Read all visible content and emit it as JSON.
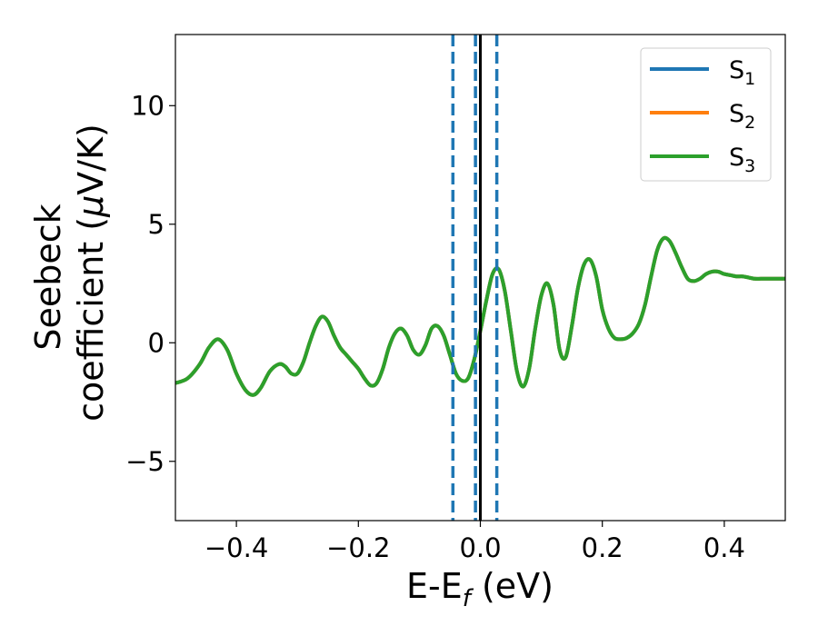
{
  "chart_data": {
    "type": "line",
    "xlabel": "E-E$_f$ (eV)",
    "xlabel_parts": {
      "main": "E-E",
      "sub": "f",
      "tail": " (eV)"
    },
    "ylabel_line1": "Seebeck",
    "ylabel_line2_main": "coefficient  (",
    "ylabel_line2_mu": "μ",
    "ylabel_line2_tail": "V/K)",
    "xlim": [
      -0.5,
      0.5
    ],
    "ylim": [
      -7.5,
      13
    ],
    "xticks": [
      -0.4,
      -0.2,
      0.0,
      0.2,
      0.4
    ],
    "xtick_labels": [
      "−0.4",
      "−0.2",
      "0.0",
      "0.2",
      "0.4"
    ],
    "yticks": [
      -5,
      0,
      5,
      10
    ],
    "ytick_labels": [
      "−5",
      "0",
      "5",
      "10"
    ],
    "grid": false,
    "legend_position": "top-right",
    "vlines": [
      {
        "x": -0.045,
        "style": "dashed",
        "color": "#1f77b4"
      },
      {
        "x": -0.008,
        "style": "dashed",
        "color": "#1f77b4"
      },
      {
        "x": 0.027,
        "style": "dashed",
        "color": "#1f77b4"
      },
      {
        "x": 0.0,
        "style": "solid",
        "color": "#000000"
      }
    ],
    "x": [
      -0.5,
      -0.48,
      -0.46,
      -0.445,
      -0.43,
      -0.415,
      -0.4,
      -0.385,
      -0.372,
      -0.36,
      -0.345,
      -0.33,
      -0.32,
      -0.31,
      -0.3,
      -0.29,
      -0.28,
      -0.27,
      -0.26,
      -0.25,
      -0.24,
      -0.23,
      -0.22,
      -0.21,
      -0.2,
      -0.19,
      -0.18,
      -0.17,
      -0.16,
      -0.15,
      -0.14,
      -0.13,
      -0.12,
      -0.11,
      -0.1,
      -0.09,
      -0.08,
      -0.07,
      -0.06,
      -0.05,
      -0.04,
      -0.03,
      -0.02,
      -0.01,
      0.0,
      0.01,
      0.02,
      0.03,
      0.04,
      0.05,
      0.06,
      0.07,
      0.08,
      0.09,
      0.1,
      0.11,
      0.12,
      0.13,
      0.14,
      0.15,
      0.16,
      0.17,
      0.18,
      0.19,
      0.2,
      0.21,
      0.22,
      0.23,
      0.24,
      0.25,
      0.26,
      0.27,
      0.28,
      0.29,
      0.3,
      0.31,
      0.32,
      0.33,
      0.34,
      0.35,
      0.36,
      0.37,
      0.38,
      0.39,
      0.4,
      0.41,
      0.42,
      0.43,
      0.44,
      0.45,
      0.46,
      0.47,
      0.48,
      0.49,
      0.5
    ],
    "series": [
      {
        "name": "S$_1$",
        "legend_main": "S",
        "legend_sub": "1",
        "color": "#1f77b4",
        "values": [
          -1.7,
          -1.5,
          -0.9,
          -0.2,
          0.15,
          -0.3,
          -1.3,
          -2.0,
          -2.2,
          -1.9,
          -1.2,
          -0.9,
          -1.0,
          -1.3,
          -1.3,
          -0.8,
          0.0,
          0.7,
          1.1,
          0.9,
          0.3,
          -0.2,
          -0.5,
          -0.8,
          -1.1,
          -1.5,
          -1.8,
          -1.7,
          -1.1,
          -0.2,
          0.4,
          0.6,
          0.3,
          -0.3,
          -0.5,
          -0.1,
          0.6,
          0.7,
          0.3,
          -0.5,
          -1.3,
          -1.6,
          -1.5,
          -0.7,
          0.5,
          1.8,
          2.9,
          3.1,
          2.2,
          0.5,
          -1.2,
          -1.85,
          -1.1,
          0.6,
          2.0,
          2.5,
          1.6,
          -0.3,
          -0.6,
          0.7,
          2.3,
          3.3,
          3.5,
          2.8,
          1.4,
          0.6,
          0.2,
          0.15,
          0.2,
          0.4,
          0.8,
          1.6,
          2.8,
          3.9,
          4.4,
          4.3,
          3.8,
          3.2,
          2.7,
          2.6,
          2.7,
          2.9,
          3.0,
          3.0,
          2.9,
          2.85,
          2.8,
          2.8,
          2.75,
          2.7,
          2.7,
          2.7,
          2.7,
          2.7,
          2.7
        ]
      },
      {
        "name": "S$_2$",
        "legend_main": "S",
        "legend_sub": "2",
        "color": "#ff7f0e",
        "values": [
          -1.7,
          -1.5,
          -0.9,
          -0.2,
          0.15,
          -0.3,
          -1.3,
          -2.0,
          -2.2,
          -1.9,
          -1.2,
          -0.9,
          -1.0,
          -1.3,
          -1.3,
          -0.8,
          0.0,
          0.7,
          1.1,
          0.9,
          0.3,
          -0.2,
          -0.5,
          -0.8,
          -1.1,
          -1.5,
          -1.8,
          -1.7,
          -1.1,
          -0.2,
          0.4,
          0.6,
          0.3,
          -0.3,
          -0.5,
          -0.1,
          0.6,
          0.7,
          0.3,
          -0.5,
          -1.3,
          -1.6,
          -1.5,
          -0.7,
          0.5,
          1.8,
          2.9,
          3.1,
          2.2,
          0.5,
          -1.2,
          -1.85,
          -1.1,
          0.6,
          2.0,
          2.5,
          1.6,
          -0.3,
          -0.6,
          0.7,
          2.3,
          3.3,
          3.5,
          2.8,
          1.4,
          0.6,
          0.2,
          0.15,
          0.2,
          0.4,
          0.8,
          1.6,
          2.8,
          3.9,
          4.4,
          4.3,
          3.8,
          3.2,
          2.7,
          2.6,
          2.7,
          2.9,
          3.0,
          3.0,
          2.9,
          2.85,
          2.8,
          2.8,
          2.75,
          2.7,
          2.7,
          2.7,
          2.7,
          2.7,
          2.7
        ]
      },
      {
        "name": "S$_3$",
        "legend_main": "S",
        "legend_sub": "3",
        "color": "#2ca02c",
        "values": [
          -1.7,
          -1.5,
          -0.9,
          -0.2,
          0.15,
          -0.3,
          -1.3,
          -2.0,
          -2.2,
          -1.9,
          -1.2,
          -0.9,
          -1.0,
          -1.3,
          -1.3,
          -0.8,
          0.0,
          0.7,
          1.1,
          0.9,
          0.3,
          -0.2,
          -0.5,
          -0.8,
          -1.1,
          -1.5,
          -1.8,
          -1.7,
          -1.1,
          -0.2,
          0.4,
          0.6,
          0.3,
          -0.3,
          -0.5,
          -0.1,
          0.6,
          0.7,
          0.3,
          -0.5,
          -1.3,
          -1.6,
          -1.5,
          -0.7,
          0.5,
          1.8,
          2.9,
          3.1,
          2.2,
          0.5,
          -1.2,
          -1.85,
          -1.1,
          0.6,
          2.0,
          2.5,
          1.6,
          -0.3,
          -0.6,
          0.7,
          2.3,
          3.3,
          3.5,
          2.8,
          1.4,
          0.6,
          0.2,
          0.15,
          0.2,
          0.4,
          0.8,
          1.6,
          2.8,
          3.9,
          4.4,
          4.3,
          3.8,
          3.2,
          2.7,
          2.6,
          2.7,
          2.9,
          3.0,
          3.0,
          2.9,
          2.85,
          2.8,
          2.8,
          2.75,
          2.7,
          2.7,
          2.7,
          2.7,
          2.7,
          2.7
        ]
      }
    ]
  }
}
